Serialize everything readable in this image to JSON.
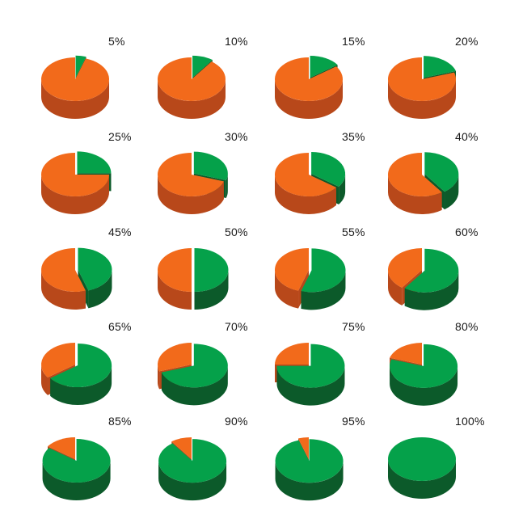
{
  "colors": {
    "green_top": "#05a14a",
    "green_side": "#0c5a2a",
    "orange_top": "#f26a1b",
    "orange_side": "#b8481a"
  },
  "chart_data": {
    "type": "pie",
    "grid": false,
    "charts": [
      {
        "label": "5%",
        "value": 5
      },
      {
        "label": "10%",
        "value": 10
      },
      {
        "label": "15%",
        "value": 15
      },
      {
        "label": "20%",
        "value": 20
      },
      {
        "label": "25%",
        "value": 25
      },
      {
        "label": "30%",
        "value": 30
      },
      {
        "label": "35%",
        "value": 35
      },
      {
        "label": "40%",
        "value": 40
      },
      {
        "label": "45%",
        "value": 45
      },
      {
        "label": "50%",
        "value": 50
      },
      {
        "label": "55%",
        "value": 55
      },
      {
        "label": "60%",
        "value": 60
      },
      {
        "label": "65%",
        "value": 65
      },
      {
        "label": "70%",
        "value": 70
      },
      {
        "label": "75%",
        "value": 75
      },
      {
        "label": "80%",
        "value": 80
      },
      {
        "label": "85%",
        "value": 85
      },
      {
        "label": "90%",
        "value": 90
      },
      {
        "label": "95%",
        "value": 95
      },
      {
        "label": "100%",
        "value": 100
      }
    ]
  }
}
